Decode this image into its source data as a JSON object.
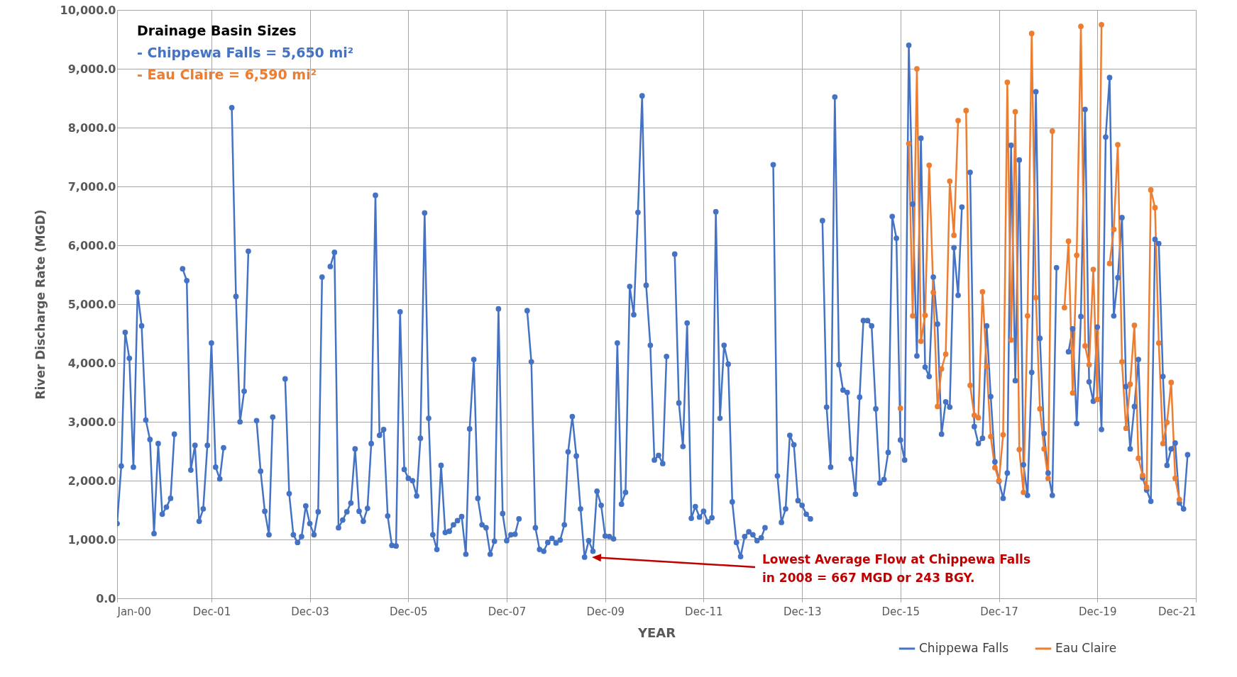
{
  "chart_data": {
    "type": "line",
    "xlabel": "YEAR",
    "ylabel": "River Discharge Rate (MGD)",
    "x": [
      "2000-01",
      "2000-02",
      "2000-03",
      "2000-04",
      "2000-05",
      "2000-06",
      "2000-07",
      "2000-08",
      "2000-09",
      "2000-10",
      "2000-11",
      "2000-12",
      "2001-01",
      "2001-02",
      "2001-03",
      "2001-04",
      "2001-05",
      "2001-06",
      "2001-07",
      "2001-08",
      "2001-09",
      "2001-10",
      "2001-11",
      "2001-12",
      "2002-01",
      "2002-02",
      "2002-03",
      "2002-04",
      "2002-05",
      "2002-06",
      "2002-07",
      "2002-08",
      "2002-09",
      "2002-10",
      "2002-11",
      "2002-12",
      "2003-01",
      "2003-02",
      "2003-03",
      "2003-04",
      "2003-05",
      "2003-06",
      "2003-07",
      "2003-08",
      "2003-09",
      "2003-10",
      "2003-11",
      "2003-12",
      "2004-01",
      "2004-02",
      "2004-03",
      "2004-04",
      "2004-05",
      "2004-06",
      "2004-07",
      "2004-08",
      "2004-09",
      "2004-10",
      "2004-11",
      "2004-12",
      "2005-01",
      "2005-02",
      "2005-03",
      "2005-04",
      "2005-05",
      "2005-06",
      "2005-07",
      "2005-08",
      "2005-09",
      "2005-10",
      "2005-11",
      "2005-12",
      "2006-01",
      "2006-02",
      "2006-03",
      "2006-04",
      "2006-05",
      "2006-06",
      "2006-07",
      "2006-08",
      "2006-09",
      "2006-10",
      "2006-11",
      "2006-12",
      "2007-01",
      "2007-02",
      "2007-03",
      "2007-04",
      "2007-05",
      "2007-06",
      "2007-07",
      "2007-08",
      "2007-09",
      "2007-10",
      "2007-11",
      "2007-12",
      "2008-01",
      "2008-02",
      "2008-03",
      "2008-04",
      "2008-05",
      "2008-06",
      "2008-07",
      "2008-08",
      "2008-09",
      "2008-10",
      "2008-11",
      "2008-12",
      "2009-01",
      "2009-02",
      "2009-03",
      "2009-04",
      "2009-05",
      "2009-06",
      "2009-07",
      "2009-08",
      "2009-09",
      "2009-10",
      "2009-11",
      "2009-12",
      "2010-01",
      "2010-02",
      "2010-03",
      "2010-04",
      "2010-05",
      "2010-06",
      "2010-07",
      "2010-08",
      "2010-09",
      "2010-10",
      "2010-11",
      "2010-12",
      "2011-01",
      "2011-02",
      "2011-03",
      "2011-04",
      "2011-05",
      "2011-06",
      "2011-07",
      "2011-08",
      "2011-09",
      "2011-10",
      "2011-11",
      "2011-12",
      "2012-01",
      "2012-02",
      "2012-03",
      "2012-04",
      "2012-05",
      "2012-06",
      "2012-07",
      "2012-08",
      "2012-09",
      "2012-10",
      "2012-11",
      "2012-12",
      "2013-01",
      "2013-02",
      "2013-03",
      "2013-04",
      "2013-05",
      "2013-06",
      "2013-07",
      "2013-08",
      "2013-09",
      "2013-10",
      "2013-11",
      "2013-12",
      "2014-01",
      "2014-02",
      "2014-03",
      "2014-04",
      "2014-05",
      "2014-06",
      "2014-07",
      "2014-08",
      "2014-09",
      "2014-10",
      "2014-11",
      "2014-12",
      "2015-01",
      "2015-02",
      "2015-03",
      "2015-04",
      "2015-05",
      "2015-06",
      "2015-07",
      "2015-08",
      "2015-09",
      "2015-10",
      "2015-11",
      "2015-12",
      "2016-01",
      "2016-02",
      "2016-03",
      "2016-04",
      "2016-05",
      "2016-06",
      "2016-07",
      "2016-08",
      "2016-09",
      "2016-10",
      "2016-11",
      "2016-12",
      "2017-01",
      "2017-02",
      "2017-03",
      "2017-04",
      "2017-05",
      "2017-06",
      "2017-07",
      "2017-08",
      "2017-09",
      "2017-10",
      "2017-11",
      "2017-12",
      "2018-01",
      "2018-02",
      "2018-03",
      "2018-04",
      "2018-05",
      "2018-06",
      "2018-07",
      "2018-08",
      "2018-09",
      "2018-10",
      "2018-11",
      "2018-12",
      "2019-01",
      "2019-02",
      "2019-03",
      "2019-04",
      "2019-05",
      "2019-06",
      "2019-07",
      "2019-08",
      "2019-09",
      "2019-10",
      "2019-11",
      "2019-12",
      "2020-01",
      "2020-02",
      "2020-03",
      "2020-04",
      "2020-05",
      "2020-06",
      "2020-07",
      "2020-08",
      "2020-09",
      "2020-10",
      "2020-11",
      "2020-12",
      "2021-01",
      "2021-02",
      "2021-03",
      "2021-04",
      "2021-05",
      "2021-06",
      "2021-07",
      "2021-08",
      "2021-09",
      "2021-10"
    ],
    "series": [
      {
        "name": "Chippewa Falls",
        "color": "#4472c4",
        "values": [
          1270,
          2250,
          4520,
          4080,
          2230,
          5200,
          4630,
          3030,
          2700,
          1100,
          2630,
          1430,
          1550,
          1700,
          2790,
          null,
          5600,
          5400,
          2180,
          2600,
          1310,
          1520,
          2600,
          4340,
          2230,
          2030,
          2560,
          null,
          8340,
          5130,
          3000,
          3520,
          5900,
          null,
          3020,
          2160,
          1480,
          1080,
          3080,
          null,
          null,
          3730,
          1780,
          1080,
          950,
          1050,
          1570,
          1270,
          1080,
          1470,
          5460,
          null,
          5640,
          5880,
          1200,
          1330,
          1470,
          1620,
          2540,
          1480,
          1310,
          1530,
          2630,
          6850,
          2770,
          2870,
          1400,
          900,
          890,
          4870,
          2190,
          2040,
          2000,
          1740,
          2720,
          6550,
          3060,
          1080,
          830,
          2260,
          1120,
          1140,
          1250,
          1320,
          1390,
          750,
          2880,
          4060,
          1700,
          1250,
          1200,
          750,
          970,
          4920,
          1440,
          980,
          1080,
          1090,
          1350,
          null,
          4890,
          4020,
          1200,
          830,
          800,
          950,
          1020,
          940,
          990,
          1250,
          2490,
          3090,
          2420,
          1520,
          700,
          980,
          800,
          1820,
          1580,
          1060,
          1050,
          1010,
          4340,
          1600,
          1800,
          5300,
          4820,
          6560,
          8540,
          5320,
          4300,
          2350,
          2430,
          2290,
          4110,
          null,
          5850,
          3320,
          2580,
          4680,
          1360,
          1560,
          1380,
          1480,
          1300,
          1370,
          6570,
          3060,
          4300,
          3980,
          1640,
          950,
          710,
          1050,
          1130,
          1080,
          980,
          1030,
          1200,
          null,
          7370,
          2080,
          1290,
          1520,
          2770,
          2610,
          1660,
          1580,
          1430,
          1350,
          null,
          null,
          6420,
          3250,
          2230,
          8520,
          3970,
          3540,
          3500,
          2370,
          1770,
          3420,
          4720,
          4720,
          4630,
          3220,
          1960,
          2020,
          2480,
          6490,
          6120,
          2690,
          2350,
          9400,
          6700,
          4120,
          7820,
          3930,
          3770,
          5460,
          4660,
          2790,
          3340,
          3250,
          5960,
          5150,
          6650,
          null,
          7240,
          2920,
          2630,
          2720,
          4630,
          3430,
          2320,
          1990,
          1700,
          2130,
          7700,
          3700,
          7450,
          2270,
          1750,
          3840,
          8610,
          4420,
          2800,
          2130,
          1750,
          5620,
          null,
          null,
          4190,
          4580,
          2970,
          4790,
          8310,
          3680,
          3350,
          4610,
          2870,
          7840,
          8850,
          4800,
          5450,
          6470,
          3600,
          2540,
          3260,
          4060,
          2050,
          1840,
          1650,
          6100,
          6030,
          3770,
          2260,
          2540,
          2640,
          1620,
          1520,
          2440
        ]
      },
      {
        "name": "Eau Claire",
        "color": "#ed7d31",
        "x": [
          "2015-12",
          "2016-01",
          "2016-02",
          "2016-03",
          "2016-04",
          "2016-05",
          "2016-06",
          "2016-07",
          "2016-08",
          "2016-09",
          "2016-10",
          "2016-11",
          "2016-12",
          "2017-01",
          "2017-02",
          "2017-03",
          "2017-04",
          "2017-05",
          "2017-06",
          "2017-07",
          "2017-08",
          "2017-09",
          "2017-10",
          "2017-11",
          "2017-12",
          "2018-01",
          "2018-02",
          "2018-03",
          "2018-04",
          "2018-05",
          "2018-06",
          "2018-07",
          "2018-08",
          "2018-09",
          "2018-10",
          "2018-11",
          "2018-12",
          "2019-01",
          "2019-02",
          "2019-03",
          "2019-04",
          "2019-05",
          "2019-06",
          "2019-07",
          "2019-08",
          "2019-09",
          "2019-10",
          "2019-11",
          "2019-12",
          "2020-01",
          "2020-02",
          "2020-03",
          "2020-04",
          "2020-05",
          "2020-06",
          "2020-07",
          "2020-08",
          "2020-09",
          "2020-10",
          "2020-11",
          "2020-12",
          "2021-01",
          "2021-02",
          "2021-03",
          "2021-04",
          "2021-05",
          "2021-06",
          "2021-07",
          "2021-08"
        ],
        "values": [
          3230,
          null,
          7730,
          4800,
          9000,
          4370,
          4810,
          7360,
          5200,
          3260,
          3900,
          4150,
          7090,
          6170,
          8120,
          null,
          8290,
          3620,
          3110,
          3070,
          5210,
          3940,
          2750,
          2220,
          2000,
          2780,
          8770,
          4390,
          8270,
          2530,
          1800,
          4800,
          9600,
          5110,
          3220,
          2540,
          2040,
          7940,
          null,
          null,
          4940,
          6070,
          3490,
          5830,
          9720,
          4290,
          3970,
          5590,
          3380,
          9750,
          null,
          5690,
          6270,
          7710,
          4020,
          2890,
          3640,
          4640,
          2380,
          2090,
          1890,
          6940,
          6640,
          4340,
          2630,
          2990,
          3670,
          2040,
          1680
        ]
      }
    ],
    "xlim": [
      "2000-01",
      "2021-12"
    ],
    "xticks": [
      {
        "value": "2000-01",
        "label": "Jan-00"
      },
      {
        "value": "2001-12",
        "label": "Dec-01"
      },
      {
        "value": "2003-12",
        "label": "Dec-03"
      },
      {
        "value": "2005-12",
        "label": "Dec-05"
      },
      {
        "value": "2007-12",
        "label": "Dec-07"
      },
      {
        "value": "2009-12",
        "label": "Dec-09"
      },
      {
        "value": "2011-12",
        "label": "Dec-11"
      },
      {
        "value": "2013-12",
        "label": "Dec-13"
      },
      {
        "value": "2015-12",
        "label": "Dec-15"
      },
      {
        "value": "2017-12",
        "label": "Dec-17"
      },
      {
        "value": "2019-12",
        "label": "Dec-19"
      },
      {
        "value": "2021-12",
        "label": "Dec-21"
      }
    ],
    "ylim": [
      0,
      10000
    ],
    "yticks": [
      {
        "value": 0,
        "label": "0.0"
      },
      {
        "value": 1000,
        "label": "1,000.0"
      },
      {
        "value": 2000,
        "label": "2,000.0"
      },
      {
        "value": 3000,
        "label": "3,000.0"
      },
      {
        "value": 4000,
        "label": "4,000.0"
      },
      {
        "value": 5000,
        "label": "5,000.0"
      },
      {
        "value": 6000,
        "label": "6,000.0"
      },
      {
        "value": 7000,
        "label": "7,000.0"
      },
      {
        "value": 8000,
        "label": "8,000.0"
      },
      {
        "value": 9000,
        "label": "9,000.0"
      },
      {
        "value": 10000,
        "label": "10,000.0"
      }
    ],
    "grid": true,
    "legend": "bottom right",
    "marker": "circle",
    "line_style": "solid",
    "annotations": [
      "Drainage Basin Sizes",
      "- Chippewa Falls = 5,650 mi²",
      "- Eau Claire = 6,590 mi²",
      "Lowest Average Flow at Chippewa Falls in 2008  =  667 MGD or 243 BGY."
    ]
  }
}
